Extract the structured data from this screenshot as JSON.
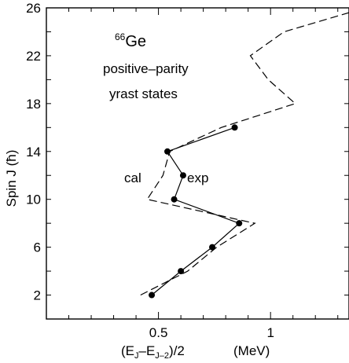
{
  "chart_data": {
    "type": "line",
    "xlabel": {
      "main_open": "(E",
      "sub1": "J",
      "mid": "–E",
      "sub2": "J–2",
      "main_close": ")/2",
      "unit": "(MeV)"
    },
    "ylabel": "Spin J  (ħ)",
    "xlim": [
      0,
      1.35
    ],
    "ylim": [
      0,
      26
    ],
    "x_ticks": [
      {
        "value": 0.5,
        "label": "0.5"
      },
      {
        "value": 1,
        "label": "1"
      }
    ],
    "y_ticks": [
      {
        "value": 2,
        "label": "2"
      },
      {
        "value": 6,
        "label": "6"
      },
      {
        "value": 10,
        "label": "10"
      },
      {
        "value": 14,
        "label": "14"
      },
      {
        "value": 18,
        "label": "18"
      },
      {
        "value": 22,
        "label": "22"
      },
      {
        "value": 26,
        "label": "26"
      }
    ],
    "annotations": {
      "nucleus_mass": "66",
      "nucleus_symbol": "Ge",
      "line1": "positive–parity",
      "line2": "yrast states",
      "cal_label": "cal",
      "exp_label": "exp"
    },
    "series": [
      {
        "name": "exp",
        "style": "solid-with-markers",
        "points": [
          {
            "x": 0.47,
            "y": 2
          },
          {
            "x": 0.6,
            "y": 4
          },
          {
            "x": 0.74,
            "y": 6
          },
          {
            "x": 0.86,
            "y": 8
          },
          {
            "x": 0.57,
            "y": 10
          },
          {
            "x": 0.61,
            "y": 12
          },
          {
            "x": 0.54,
            "y": 14
          },
          {
            "x": 0.84,
            "y": 16
          }
        ]
      },
      {
        "name": "cal",
        "style": "dashed",
        "points": [
          {
            "x": 0.42,
            "y": 2
          },
          {
            "x": 0.63,
            "y": 4
          },
          {
            "x": 0.76,
            "y": 6
          },
          {
            "x": 0.93,
            "y": 8
          },
          {
            "x": 0.45,
            "y": 10
          },
          {
            "x": 0.52,
            "y": 12
          },
          {
            "x": 0.55,
            "y": 14
          },
          {
            "x": 0.78,
            "y": 16
          },
          {
            "x": 1.11,
            "y": 18
          },
          {
            "x": 0.99,
            "y": 20
          },
          {
            "x": 0.91,
            "y": 22
          },
          {
            "x": 1.06,
            "y": 24
          },
          {
            "x": 1.35,
            "y": 25.6
          }
        ]
      }
    ],
    "colors": {
      "line": "#000000",
      "background": "#ffffff"
    }
  }
}
